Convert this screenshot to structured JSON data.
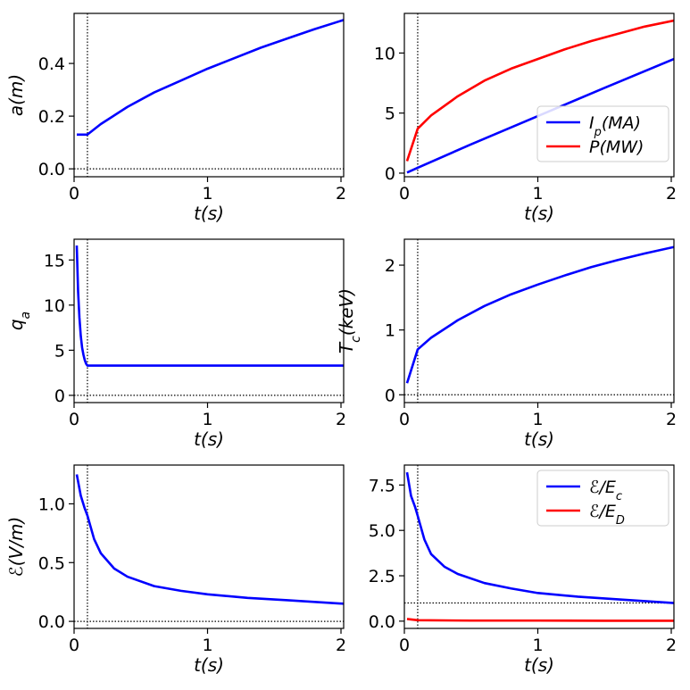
{
  "chart_data": [
    {
      "id": "p1",
      "type": "line",
      "xlabel": "t(s)",
      "ylabel": "a(m)",
      "xlim": [
        0,
        2.02
      ],
      "ylim": [
        -0.03,
        0.59
      ],
      "xticks": [
        0,
        1,
        2
      ],
      "xtick_labels": [
        "0",
        "1",
        "2"
      ],
      "yticks": [
        0,
        0.2,
        0.4
      ],
      "ytick_labels": [
        "0.0",
        "0.2",
        "0.4"
      ],
      "vline": 0.1,
      "hlines": [
        0
      ],
      "series": [
        {
          "name": "a",
          "color": "#0000ff",
          "x": [
            0.02,
            0.1,
            0.2,
            0.4,
            0.6,
            0.8,
            1.0,
            1.2,
            1.4,
            1.6,
            1.8,
            2.02
          ],
          "y": [
            0.13,
            0.13,
            0.17,
            0.235,
            0.29,
            0.335,
            0.38,
            0.42,
            0.46,
            0.495,
            0.53,
            0.565
          ]
        }
      ]
    },
    {
      "id": "p2",
      "type": "line",
      "xlabel": "t(s)",
      "ylabel": "",
      "xlim": [
        0,
        2.02
      ],
      "ylim": [
        -0.3,
        13.3
      ],
      "xticks": [
        0,
        1,
        2
      ],
      "xtick_labels": [
        "0",
        "1",
        "2"
      ],
      "yticks": [
        0,
        5,
        10
      ],
      "ytick_labels": [
        "0",
        "5",
        "10"
      ],
      "vline": 0.1,
      "hlines": [],
      "legend": {
        "position": "right",
        "entries": [
          {
            "label": "I_p(MA)",
            "main": "I",
            "sub": "p",
            "rest": "(MA)",
            "color": "#0000ff"
          },
          {
            "label": "P(MW)",
            "main": "P(MW)",
            "sub": "",
            "rest": "",
            "color": "#ff0000"
          }
        ]
      },
      "series": [
        {
          "name": "I_p(MA)",
          "color": "#0000ff",
          "x": [
            0.02,
            0.1,
            0.5,
            1.0,
            1.5,
            2.02
          ],
          "y": [
            0.05,
            0.45,
            2.4,
            4.75,
            7.1,
            9.5
          ]
        },
        {
          "name": "P(MW)",
          "color": "#ff0000",
          "x": [
            0.02,
            0.1,
            0.2,
            0.4,
            0.6,
            0.8,
            1.0,
            1.2,
            1.4,
            1.6,
            1.8,
            2.02
          ],
          "y": [
            1.0,
            3.7,
            4.8,
            6.4,
            7.7,
            8.7,
            9.5,
            10.3,
            11.0,
            11.6,
            12.2,
            12.7
          ]
        }
      ]
    },
    {
      "id": "p3",
      "type": "line",
      "xlabel": "t(s)",
      "ylabel": "q_a",
      "xlim": [
        0,
        2.02
      ],
      "ylim": [
        -0.8,
        17.3
      ],
      "xticks": [
        0,
        1,
        2
      ],
      "xtick_labels": [
        "0",
        "1",
        "2"
      ],
      "yticks": [
        0,
        5,
        10,
        15
      ],
      "ytick_labels": [
        "0",
        "5",
        "10",
        "15"
      ],
      "vline": 0.1,
      "hlines": [
        0
      ],
      "series": [
        {
          "name": "q_a",
          "color": "#0000ff",
          "x": [
            0.02,
            0.03,
            0.04,
            0.05,
            0.06,
            0.07,
            0.08,
            0.09,
            0.1,
            0.5,
            1.0,
            1.5,
            2.02
          ],
          "y": [
            16.6,
            11.5,
            8.6,
            6.6,
            5.3,
            4.5,
            3.9,
            3.5,
            3.3,
            3.3,
            3.3,
            3.3,
            3.3
          ]
        }
      ]
    },
    {
      "id": "p4",
      "type": "line",
      "xlabel": "t(s)",
      "ylabel": "T_c(keV)",
      "xlim": [
        0,
        2.02
      ],
      "ylim": [
        -0.12,
        2.4
      ],
      "xticks": [
        0,
        1,
        2
      ],
      "xtick_labels": [
        "0",
        "1",
        "2"
      ],
      "yticks": [
        0,
        1,
        2
      ],
      "ytick_labels": [
        "0",
        "1",
        "2"
      ],
      "vline": 0.1,
      "hlines": [
        0
      ],
      "series": [
        {
          "name": "T_c",
          "color": "#0000ff",
          "x": [
            0.02,
            0.1,
            0.2,
            0.4,
            0.6,
            0.8,
            1.0,
            1.2,
            1.4,
            1.6,
            1.8,
            2.02
          ],
          "y": [
            0.18,
            0.7,
            0.88,
            1.15,
            1.37,
            1.55,
            1.7,
            1.84,
            1.97,
            2.08,
            2.18,
            2.28
          ]
        }
      ]
    },
    {
      "id": "p5",
      "type": "line",
      "xlabel": "t(s)",
      "ylabel": "ℰ(V/m)",
      "xlim": [
        0,
        2.02
      ],
      "ylim": [
        -0.06,
        1.33
      ],
      "xticks": [
        0,
        1,
        2
      ],
      "xtick_labels": [
        "0",
        "1",
        "2"
      ],
      "yticks": [
        0,
        0.5,
        1.0
      ],
      "ytick_labels": [
        "0.0",
        "0.5",
        "1.0"
      ],
      "vline": 0.1,
      "hlines": [
        0
      ],
      "series": [
        {
          "name": "E",
          "color": "#0000ff",
          "x": [
            0.02,
            0.05,
            0.08,
            0.1,
            0.15,
            0.2,
            0.3,
            0.4,
            0.6,
            0.8,
            1.0,
            1.3,
            1.6,
            2.02
          ],
          "y": [
            1.25,
            1.07,
            0.96,
            0.9,
            0.7,
            0.58,
            0.45,
            0.38,
            0.3,
            0.26,
            0.23,
            0.2,
            0.18,
            0.15
          ]
        }
      ]
    },
    {
      "id": "p6",
      "type": "line",
      "xlabel": "t(s)",
      "ylabel": "",
      "xlim": [
        0,
        2.02
      ],
      "ylim": [
        -0.4,
        8.6
      ],
      "xticks": [
        0,
        1,
        2
      ],
      "xtick_labels": [
        "0",
        "1",
        "2"
      ],
      "yticks": [
        0,
        2.5,
        5.0,
        7.5
      ],
      "ytick_labels": [
        "0.0",
        "2.5",
        "5.0",
        "7.5"
      ],
      "vline": 0.1,
      "hlines": [
        1.0
      ],
      "legend": {
        "position": "top-right",
        "entries": [
          {
            "label": "ℰ/E_c",
            "main": "ℰ/E",
            "sub": "c",
            "rest": "",
            "color": "#0000ff"
          },
          {
            "label": "ℰ/E_D",
            "main": "ℰ/E",
            "sub": "D",
            "rest": "",
            "color": "#ff0000"
          }
        ]
      },
      "series": [
        {
          "name": "ℰ/E_c",
          "color": "#0000ff",
          "x": [
            0.02,
            0.05,
            0.08,
            0.1,
            0.15,
            0.2,
            0.3,
            0.4,
            0.6,
            0.8,
            1.0,
            1.3,
            1.6,
            2.02
          ],
          "y": [
            8.2,
            6.9,
            6.3,
            5.8,
            4.5,
            3.7,
            3.0,
            2.6,
            2.1,
            1.8,
            1.55,
            1.35,
            1.2,
            1.0
          ]
        },
        {
          "name": "ℰ/E_D",
          "color": "#ff0000",
          "x": [
            0.02,
            0.1,
            0.5,
            1.0,
            1.5,
            2.02
          ],
          "y": [
            0.12,
            0.05,
            0.03,
            0.03,
            0.02,
            0.02
          ]
        }
      ]
    }
  ]
}
